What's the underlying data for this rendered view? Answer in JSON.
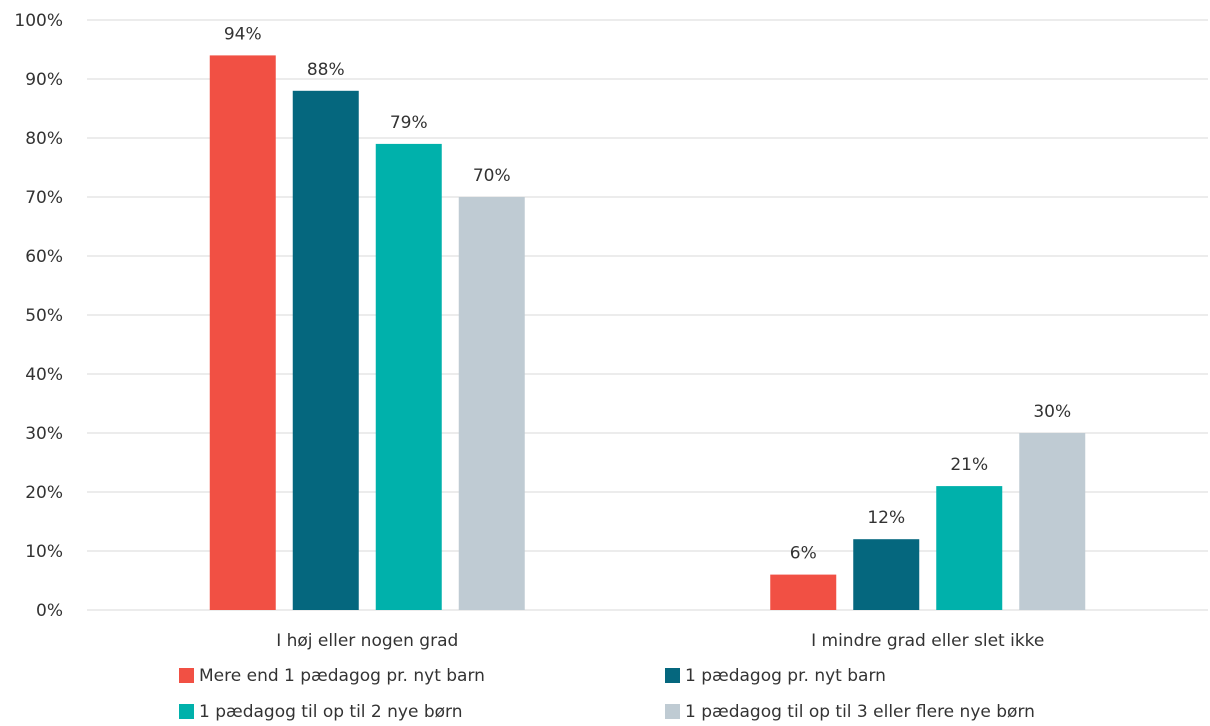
{
  "chart_data": {
    "type": "bar",
    "categories": [
      "I høj eller nogen grad",
      "I mindre grad eller slet ikke"
    ],
    "series": [
      {
        "name": "Mere end 1 pædagog pr. nyt barn",
        "values": [
          94,
          6
        ],
        "color": "#f15044"
      },
      {
        "name": "1 pædagog pr. nyt barn",
        "values": [
          88,
          12
        ],
        "color": "#05677e"
      },
      {
        "name": "1 pædagog til op til 2 nye børn",
        "values": [
          79,
          21
        ],
        "color": "#00b1ab"
      },
      {
        "name": "1 pædagog til op til 3 eller flere nye børn",
        "values": [
          70,
          30
        ],
        "color": "#bfcbd3"
      }
    ],
    "ylim": [
      0,
      100
    ],
    "yticks": [
      0,
      10,
      20,
      30,
      40,
      50,
      60,
      70,
      80,
      90,
      100
    ],
    "tick_suffix": "%",
    "data_label_suffix": "%",
    "grid": true,
    "legend_position": "bottom",
    "title": "",
    "xlabel": "",
    "ylabel": ""
  }
}
